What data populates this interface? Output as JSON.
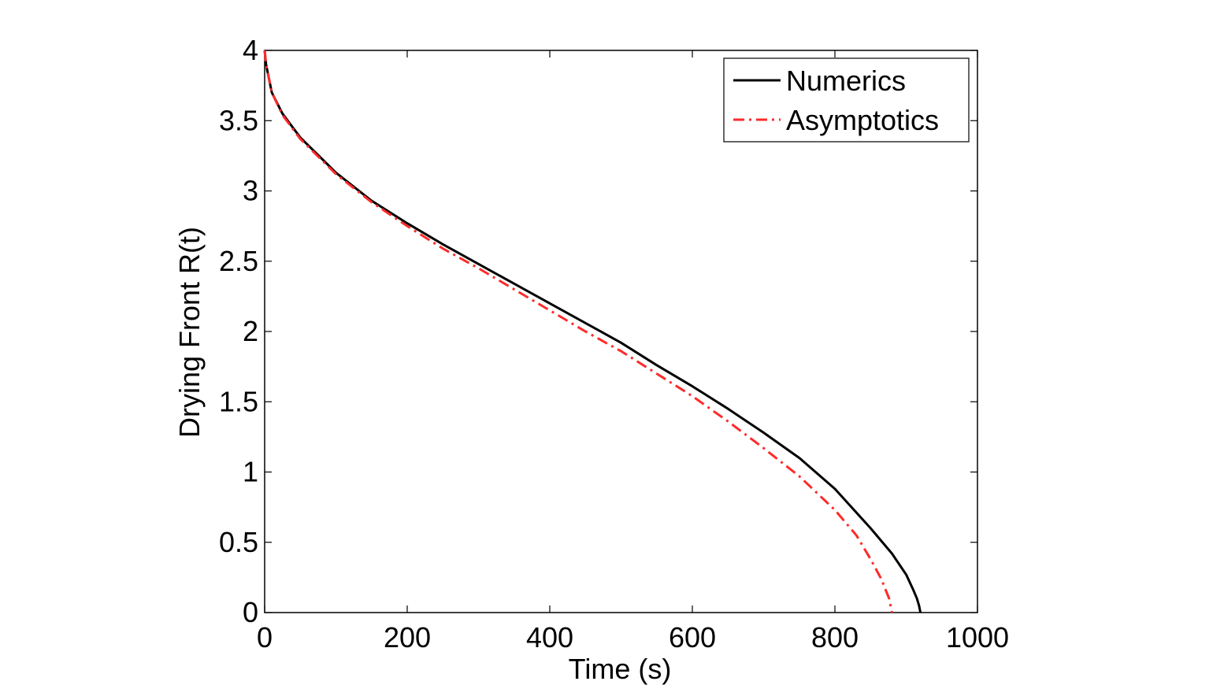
{
  "chart_data": {
    "type": "line",
    "xlabel": "Time (s)",
    "ylabel": "Drying Front R(t)",
    "xlim": [
      0,
      1000
    ],
    "ylim": [
      0,
      4
    ],
    "xticks": [
      "0",
      "200",
      "400",
      "600",
      "800",
      "1000"
    ],
    "yticks": [
      "0",
      "0.5",
      "1",
      "1.5",
      "2",
      "2.5",
      "3",
      "3.5",
      "4"
    ],
    "grid": false,
    "legend_position": "top-right",
    "series": [
      {
        "name": "Numerics",
        "color": "#000000",
        "style": "solid",
        "x": [
          0,
          2,
          10,
          25,
          50,
          100,
          150,
          200,
          250,
          300,
          350,
          400,
          450,
          500,
          550,
          600,
          650,
          700,
          750,
          800,
          850,
          880,
          900,
          910,
          915,
          918,
          920
        ],
        "y": [
          4.0,
          3.9,
          3.7,
          3.55,
          3.38,
          3.13,
          2.93,
          2.77,
          2.62,
          2.48,
          2.34,
          2.2,
          2.06,
          1.92,
          1.76,
          1.61,
          1.45,
          1.28,
          1.1,
          0.88,
          0.6,
          0.42,
          0.27,
          0.16,
          0.1,
          0.05,
          0.0
        ]
      },
      {
        "name": "Asymptotics",
        "color": "#ff2a2a",
        "style": "dashdot",
        "x": [
          0,
          2,
          10,
          25,
          50,
          100,
          150,
          200,
          250,
          300,
          350,
          400,
          450,
          500,
          550,
          600,
          650,
          700,
          750,
          800,
          830,
          850,
          865,
          872,
          876,
          878,
          880
        ],
        "y": [
          4.0,
          3.9,
          3.7,
          3.54,
          3.37,
          3.12,
          2.92,
          2.75,
          2.59,
          2.45,
          2.3,
          2.15,
          2.0,
          1.86,
          1.7,
          1.54,
          1.36,
          1.17,
          0.97,
          0.73,
          0.55,
          0.38,
          0.24,
          0.15,
          0.1,
          0.05,
          0.0
        ]
      }
    ]
  }
}
